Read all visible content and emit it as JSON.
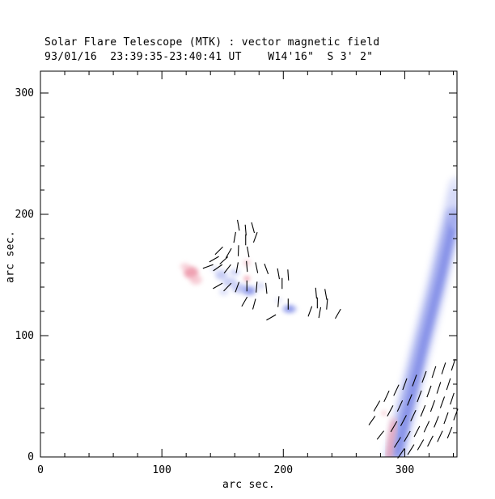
{
  "header": {
    "title_line1": "Solar Flare Telescope (MTK) : vector magnetic field",
    "title_line2": "93/01/16  23:39:35-23:40:41 UT    W14'16\"  S 3' 2\""
  },
  "axes": {
    "xlabel": "arc sec.",
    "ylabel": "arc sec."
  },
  "chart_data": {
    "type": "scatter",
    "subtype": "vector-magnetogram",
    "title": "Solar Flare Telescope (MTK) : vector magnetic field",
    "subtitle": "93/01/16  23:39:35-23:40:41 UT    W14'16\"  S 3' 2\"",
    "xlabel": "arc sec.",
    "ylabel": "arc sec.",
    "xlim": [
      0,
      343
    ],
    "ylim": [
      0,
      318
    ],
    "x_ticks": [
      0,
      100,
      200,
      300
    ],
    "y_ticks": [
      0,
      100,
      200,
      300
    ],
    "minor_tick_step": 20,
    "grid": false,
    "legend": "none",
    "colors": {
      "blue": "#9aa4ec",
      "blueLight": "#c6ccf5",
      "blueCore": "#7b87e6",
      "pink": "#f2aebc",
      "pinkStrong": "#ec93a6",
      "vector": "#000000",
      "axis": "#000000"
    },
    "blobs": [
      [
        124,
        152,
        6,
        5,
        "pinkStrong",
        0.85
      ],
      [
        128,
        146,
        5,
        4,
        "pink",
        0.6
      ],
      [
        119,
        157,
        4,
        3,
        "pink",
        0.5
      ],
      [
        170,
        160,
        3,
        2.5,
        "pink",
        0.55
      ],
      [
        170,
        147,
        2.5,
        2,
        "pinkStrong",
        0.9
      ],
      [
        283,
        36,
        2,
        2,
        "pink",
        0.7
      ],
      [
        149,
        150,
        5,
        4,
        "blue",
        0.55
      ],
      [
        156,
        144,
        6,
        4,
        "blue",
        0.5
      ],
      [
        164,
        139,
        6,
        4,
        "blue",
        0.6
      ],
      [
        172,
        137,
        6,
        4,
        "blue",
        0.7
      ],
      [
        172,
        137,
        3,
        2,
        "blueCore",
        0.85
      ],
      [
        181,
        141,
        4,
        3,
        "blueLight",
        0.6
      ],
      [
        151,
        136,
        4,
        3,
        "blueLight",
        0.55
      ],
      [
        160,
        152,
        4,
        3,
        "blue",
        0.45
      ],
      [
        143,
        155,
        3,
        2.5,
        "blueLight",
        0.5
      ],
      [
        196,
        129,
        3,
        2,
        "blueLight",
        0.55
      ],
      [
        205,
        122,
        6,
        3.5,
        "blue",
        0.7
      ],
      [
        205,
        122,
        3,
        2,
        "blueCore",
        0.8
      ],
      [
        341,
        205,
        6,
        18,
        "blueLight",
        0.45
      ]
    ],
    "streaks": [
      {
        "points": [
          [
            292,
            0
          ],
          [
            300,
            35
          ],
          [
            312,
            85
          ],
          [
            326,
            140
          ],
          [
            340,
            200
          ],
          [
            345,
            222
          ]
        ],
        "width": 30,
        "color": "blueLight",
        "opacity": 0.45
      },
      {
        "points": [
          [
            292,
            0
          ],
          [
            300,
            35
          ],
          [
            312,
            85
          ],
          [
            326,
            140
          ],
          [
            340,
            200
          ]
        ],
        "width": 19,
        "color": "blue",
        "opacity": 0.75
      },
      {
        "points": [
          [
            294,
            4
          ],
          [
            304,
            45
          ],
          [
            316,
            95
          ],
          [
            330,
            150
          ],
          [
            341,
            198
          ]
        ],
        "width": 9,
        "color": "blueCore",
        "opacity": 0.8
      },
      {
        "points": [
          [
            287,
            0
          ],
          [
            289,
            16
          ],
          [
            291,
            30
          ]
        ],
        "width": 9,
        "color": "pink",
        "opacity": 0.45
      },
      {
        "points": [
          [
            287,
            0
          ],
          [
            289,
            16
          ],
          [
            291,
            28
          ]
        ],
        "width": 4,
        "color": "pinkStrong",
        "opacity": 0.85
      }
    ],
    "vectors": [
      [
        163,
        191,
        100,
        9
      ],
      [
        169,
        187,
        95,
        9
      ],
      [
        175,
        189,
        105,
        9
      ],
      [
        160,
        181,
        80,
        9
      ],
      [
        169,
        179,
        90,
        9
      ],
      [
        177,
        181,
        70,
        9
      ],
      [
        147,
        170,
        45,
        9
      ],
      [
        155,
        168,
        60,
        9
      ],
      [
        163,
        170,
        88,
        9
      ],
      [
        171,
        169,
        100,
        9
      ],
      [
        143,
        163,
        30,
        9
      ],
      [
        151,
        162,
        42,
        9
      ],
      [
        138,
        157,
        20,
        9
      ],
      [
        146,
        156,
        35,
        9
      ],
      [
        154,
        155,
        52,
        9
      ],
      [
        162,
        156,
        80,
        9
      ],
      [
        170,
        157,
        95,
        9
      ],
      [
        178,
        156,
        102,
        9
      ],
      [
        186,
        155,
        110,
        9
      ],
      [
        196,
        151,
        100,
        9
      ],
      [
        204,
        150,
        94,
        9
      ],
      [
        199,
        143,
        90,
        9
      ],
      [
        146,
        141,
        30,
        9
      ],
      [
        154,
        140,
        46,
        9
      ],
      [
        162,
        140,
        70,
        9
      ],
      [
        170,
        141,
        90,
        9
      ],
      [
        178,
        140,
        85,
        9
      ],
      [
        186,
        139,
        96,
        9
      ],
      [
        168,
        128,
        60,
        9
      ],
      [
        176,
        126,
        75,
        9
      ],
      [
        196,
        128,
        85,
        9
      ],
      [
        204,
        126,
        90,
        9
      ],
      [
        227,
        135,
        95,
        9
      ],
      [
        235,
        134,
        100,
        9
      ],
      [
        228,
        127,
        90,
        9
      ],
      [
        236,
        126,
        85,
        9
      ],
      [
        230,
        119,
        80,
        9
      ],
      [
        222,
        120,
        70,
        9
      ],
      [
        245,
        118,
        60,
        9
      ],
      [
        190,
        115,
        30,
        9
      ],
      [
        277,
        42,
        60,
        10
      ],
      [
        285,
        50,
        65,
        10
      ],
      [
        293,
        55,
        65,
        10
      ],
      [
        300,
        60,
        70,
        10
      ],
      [
        308,
        63,
        70,
        10
      ],
      [
        316,
        66,
        70,
        10
      ],
      [
        324,
        70,
        72,
        10
      ],
      [
        332,
        73,
        72,
        10
      ],
      [
        340,
        76,
        72,
        10
      ],
      [
        288,
        38,
        62,
        10
      ],
      [
        296,
        42,
        65,
        10
      ],
      [
        304,
        47,
        68,
        10
      ],
      [
        312,
        50,
        70,
        10
      ],
      [
        320,
        54,
        70,
        10
      ],
      [
        328,
        57,
        72,
        10
      ],
      [
        336,
        60,
        72,
        10
      ],
      [
        291,
        25,
        60,
        10
      ],
      [
        299,
        30,
        62,
        10
      ],
      [
        307,
        34,
        65,
        10
      ],
      [
        315,
        38,
        68,
        10
      ],
      [
        323,
        42,
        70,
        10
      ],
      [
        331,
        45,
        70,
        10
      ],
      [
        339,
        48,
        72,
        10
      ],
      [
        294,
        12,
        58,
        10
      ],
      [
        302,
        17,
        60,
        10
      ],
      [
        310,
        21,
        63,
        10
      ],
      [
        318,
        25,
        65,
        10
      ],
      [
        326,
        29,
        68,
        10
      ],
      [
        334,
        32,
        70,
        10
      ],
      [
        342,
        35,
        70,
        10
      ],
      [
        297,
        3,
        55,
        10
      ],
      [
        305,
        6,
        58,
        10
      ],
      [
        313,
        10,
        60,
        10
      ],
      [
        321,
        13,
        63,
        10
      ],
      [
        329,
        17,
        65,
        10
      ],
      [
        337,
        20,
        68,
        10
      ],
      [
        273,
        30,
        55,
        9
      ],
      [
        280,
        18,
        52,
        9
      ]
    ]
  }
}
